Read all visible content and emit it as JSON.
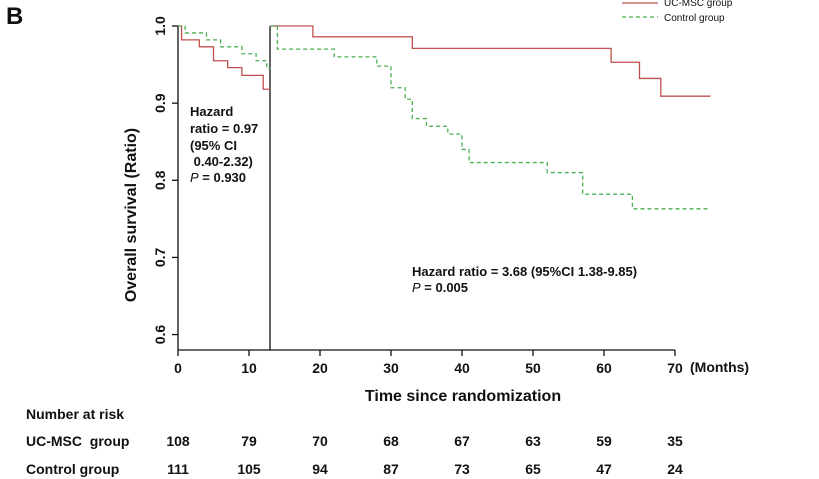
{
  "panel_label": "B",
  "chart_data": {
    "type": "line",
    "chart_kind": "kaplan-meier",
    "xlabel": "Time since randomization",
    "xunit_label": "(Months)",
    "ylabel": "Overall survival (Ratio)",
    "xlim": [
      0,
      75
    ],
    "ylim": [
      0.58,
      1.0
    ],
    "x_ticks": [
      0,
      10,
      20,
      30,
      40,
      50,
      60,
      70
    ],
    "x_tick_labels": [
      "0",
      "10",
      "20",
      "30",
      "40",
      "50",
      "60",
      "70"
    ],
    "y_ticks": [
      0.6,
      0.7,
      0.8,
      0.9,
      1.0
    ],
    "y_tick_labels": [
      "0.6",
      "0.7",
      "0.8",
      "0.9",
      "1.0"
    ],
    "grid": false,
    "legend_position": "top-right",
    "landmark_x": 13,
    "series": [
      {
        "name": "UC-MSC group",
        "color": "#c0504d",
        "style": "solid",
        "steps": [
          [
            0,
            1.0
          ],
          [
            0.5,
            0.982
          ],
          [
            3,
            0.973
          ],
          [
            5,
            0.955
          ],
          [
            7,
            0.946
          ],
          [
            9,
            0.936
          ],
          [
            12,
            0.918
          ],
          [
            13,
            1.0
          ],
          [
            19,
            0.986
          ],
          [
            33,
            0.971
          ],
          [
            61,
            0.953
          ],
          [
            65,
            0.932
          ],
          [
            68,
            0.909
          ],
          [
            75,
            0.909
          ]
        ]
      },
      {
        "name": "Control group",
        "color": "#4caf50",
        "style": "dashed",
        "steps": [
          [
            0,
            1.0
          ],
          [
            1,
            0.991
          ],
          [
            4,
            0.982
          ],
          [
            6,
            0.973
          ],
          [
            9,
            0.964
          ],
          [
            11,
            0.955
          ],
          [
            12.5,
            0.945
          ],
          [
            13,
            1.0
          ],
          [
            14,
            0.97
          ],
          [
            22,
            0.96
          ],
          [
            28,
            0.948
          ],
          [
            30,
            0.92
          ],
          [
            32,
            0.905
          ],
          [
            33,
            0.88
          ],
          [
            35,
            0.87
          ],
          [
            38,
            0.86
          ],
          [
            40,
            0.84
          ],
          [
            41,
            0.823
          ],
          [
            52,
            0.81
          ],
          [
            57,
            0.782
          ],
          [
            64,
            0.763
          ],
          [
            75,
            0.763
          ]
        ]
      }
    ],
    "annotations": {
      "left": {
        "lines": [
          "Hazard",
          "ratio = 0.97",
          "(95% CI",
          " 0.40-2.32)"
        ],
        "p_label": "P",
        "p_value": " = 0.930"
      },
      "right": {
        "line1": "Hazard ratio = 3.68 (95%CI 1.38-9.85)",
        "p_label": "P",
        "p_value": " = 0.005"
      }
    },
    "risk_table": {
      "title": "Number at risk",
      "rows": [
        {
          "label": "UC-MSC  group",
          "values": [
            "108",
            "79",
            "70",
            "68",
            "67",
            "63",
            "59",
            "35"
          ]
        },
        {
          "label": "Control group",
          "values": [
            "111",
            "105",
            "94",
            "87",
            "73",
            "65",
            "47",
            "24"
          ]
        }
      ]
    }
  }
}
